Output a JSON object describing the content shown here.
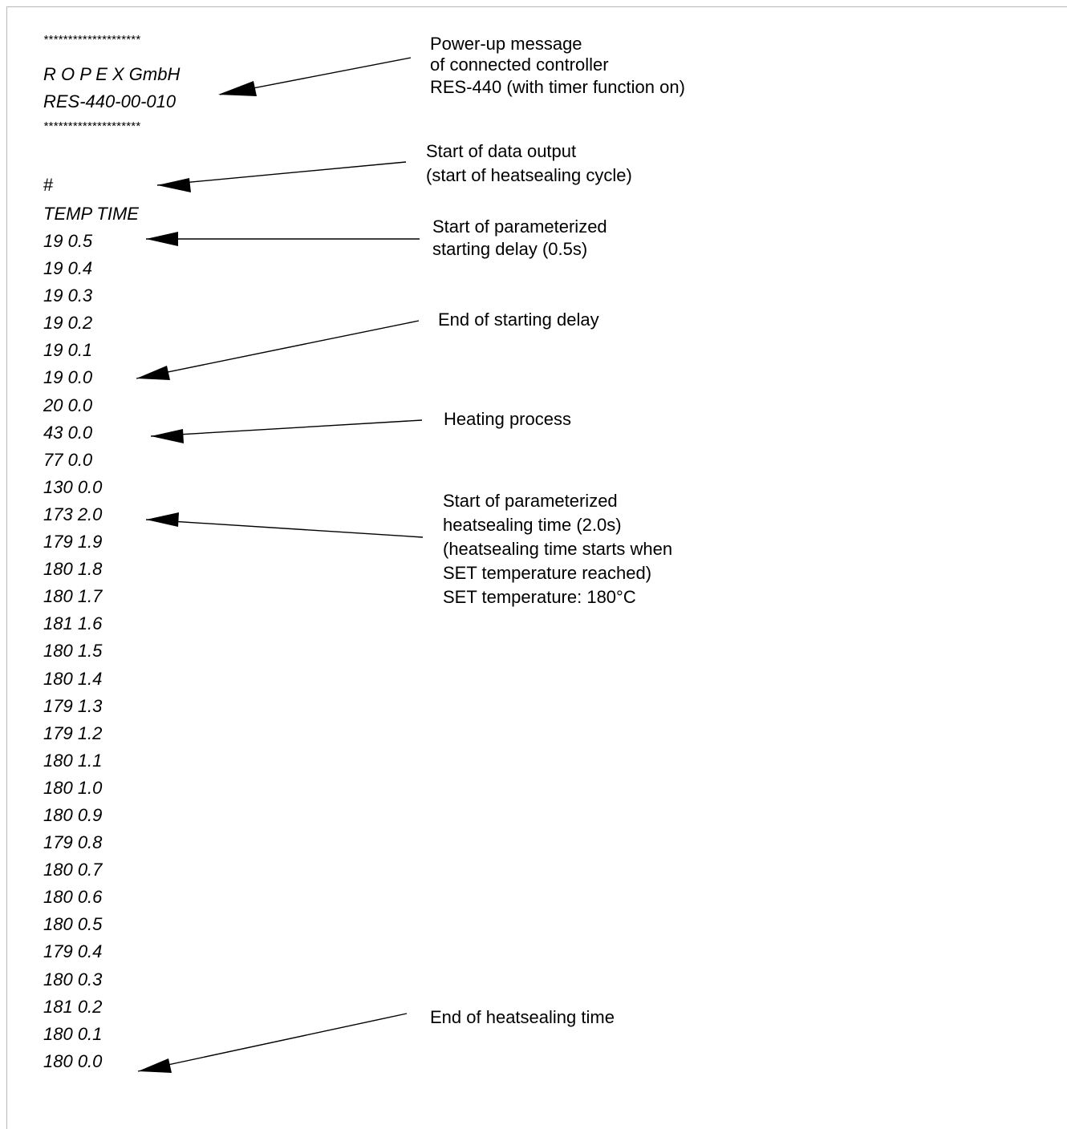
{
  "header": {
    "stars_top": "********************",
    "company": "R O P E X GmbH",
    "model": "RES-440-00-010",
    "stars_bottom": "********************"
  },
  "hash_marker": "#",
  "column_header": "TEMP TIME",
  "data_rows": [
    "19 0.5",
    "19 0.4",
    "19 0.3",
    "19 0.2",
    "19 0.1",
    "19 0.0",
    "20 0.0",
    "43 0.0",
    "77 0.0",
    "130 0.0",
    "173 2.0",
    "179 1.9",
    "180 1.8",
    "180 1.7",
    "181 1.6",
    "180 1.5",
    "180 1.4",
    "179 1.3",
    "179 1.2",
    "180 1.1",
    "180 1.0",
    "180 0.9",
    "179 0.8",
    "180 0.7",
    "180 0.6",
    "180 0.5",
    "179 0.4",
    "180 0.3",
    "181 0.2",
    "180 0.1",
    "180 0.0"
  ],
  "annotations": {
    "powerup": [
      "Power-up message",
      "of connected controller",
      "RES-440 (with timer function on)"
    ],
    "data_output": [
      "Start of data output",
      "(start of heatsealing cycle)"
    ],
    "starting_delay": [
      "Start of parameterized",
      "starting delay (0.5s)"
    ],
    "end_starting_delay": [
      "End of starting delay"
    ],
    "heating": [
      "Heating process"
    ],
    "heatsealing_time": [
      "Start of parameterized",
      "heatsealing time (2.0s)",
      "(heatsealing time starts when",
      " SET temperature reached)",
      "SET temperature: 180°C"
    ],
    "end_heatsealing": [
      "End of heatsealing time"
    ]
  }
}
